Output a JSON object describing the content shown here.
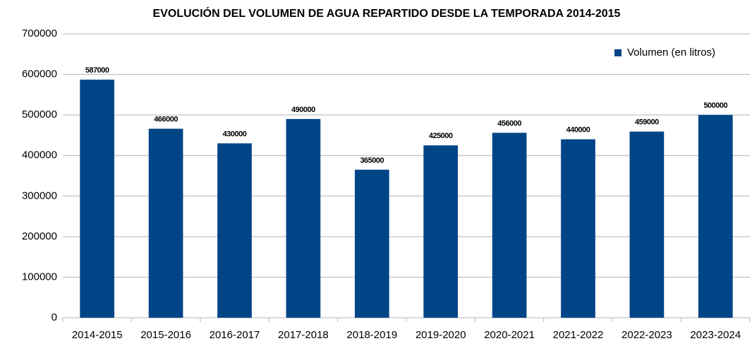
{
  "chart_data": {
    "type": "bar",
    "title": "EVOLUCIÓN DEL VOLUMEN DE AGUA REPARTIDO DESDE LA TEMPORADA 2014-2015",
    "categories": [
      "2014-2015",
      "2015-2016",
      "2016-2017",
      "2017-2018",
      "2018-2019",
      "2019-2020",
      "2020-2021",
      "2021-2022",
      "2022-2023",
      "2023-2024"
    ],
    "series": [
      {
        "name": "Volumen (en litros)",
        "color": "#004586",
        "values": [
          587000,
          466000,
          430000,
          490000,
          365000,
          425000,
          456000,
          440000,
          459000,
          500000
        ]
      }
    ],
    "ylim": [
      0,
      700000
    ],
    "yticks": [
      0,
      100000,
      200000,
      300000,
      400000,
      500000,
      600000,
      700000
    ],
    "grid": true,
    "legend": "top-right",
    "data_labels": true
  }
}
